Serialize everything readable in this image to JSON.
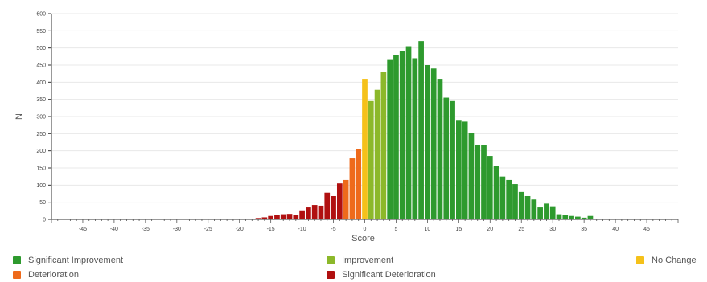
{
  "chart_data": {
    "type": "bar",
    "title": "",
    "xlabel": "Score",
    "ylabel": "N",
    "xlim": [
      -50,
      50
    ],
    "ylim": [
      0,
      600
    ],
    "x_ticks": [
      -45,
      -40,
      -35,
      -30,
      -25,
      -20,
      -15,
      -10,
      -5,
      0,
      5,
      10,
      15,
      20,
      25,
      30,
      35,
      40,
      45
    ],
    "y_ticks": [
      0,
      50,
      100,
      150,
      200,
      250,
      300,
      350,
      400,
      450,
      500,
      550,
      600
    ],
    "grid": "horizontal",
    "legend_position": "bottom",
    "series": [
      {
        "name": "Significant Deterioration",
        "color": "#b01010",
        "x": [
          -17,
          -16,
          -15,
          -14,
          -13,
          -12,
          -11,
          -10,
          -9,
          -8,
          -7,
          -6,
          -5,
          -4
        ],
        "values": [
          4,
          6,
          10,
          13,
          15,
          16,
          14,
          24,
          35,
          42,
          40,
          78,
          68,
          105
        ]
      },
      {
        "name": "Deterioration",
        "color": "#ee6a1b",
        "x": [
          -3,
          -2,
          -1
        ],
        "values": [
          115,
          178,
          205
        ]
      },
      {
        "name": "No Change",
        "color": "#f5c11a",
        "x": [
          0
        ],
        "values": [
          410
        ]
      },
      {
        "name": "Improvement",
        "color": "#8cb82a",
        "x": [
          1,
          2,
          3
        ],
        "values": [
          345,
          378,
          430
        ]
      },
      {
        "name": "Significant Improvement",
        "color": "#2e9a2e",
        "x": [
          4,
          5,
          6,
          7,
          8,
          9,
          10,
          11,
          12,
          13,
          14,
          15,
          16,
          17,
          18,
          19,
          20,
          21,
          22,
          23,
          24,
          25,
          26,
          27,
          28,
          29,
          30,
          31,
          32,
          33,
          34,
          35,
          36
        ],
        "values": [
          465,
          480,
          492,
          505,
          470,
          520,
          450,
          440,
          410,
          355,
          345,
          290,
          285,
          252,
          218,
          216,
          185,
          155,
          125,
          115,
          103,
          80,
          68,
          58,
          35,
          46,
          36,
          15,
          12,
          10,
          8,
          5,
          10
        ]
      }
    ]
  },
  "legend": [
    {
      "label": "Significant Improvement",
      "color": "#2e9a2e"
    },
    {
      "label": "Improvement",
      "color": "#8cb82a"
    },
    {
      "label": "No Change",
      "color": "#f5c11a"
    },
    {
      "label": "Deterioration",
      "color": "#ee6a1b"
    },
    {
      "label": "Significant Deterioration",
      "color": "#b01010"
    }
  ]
}
